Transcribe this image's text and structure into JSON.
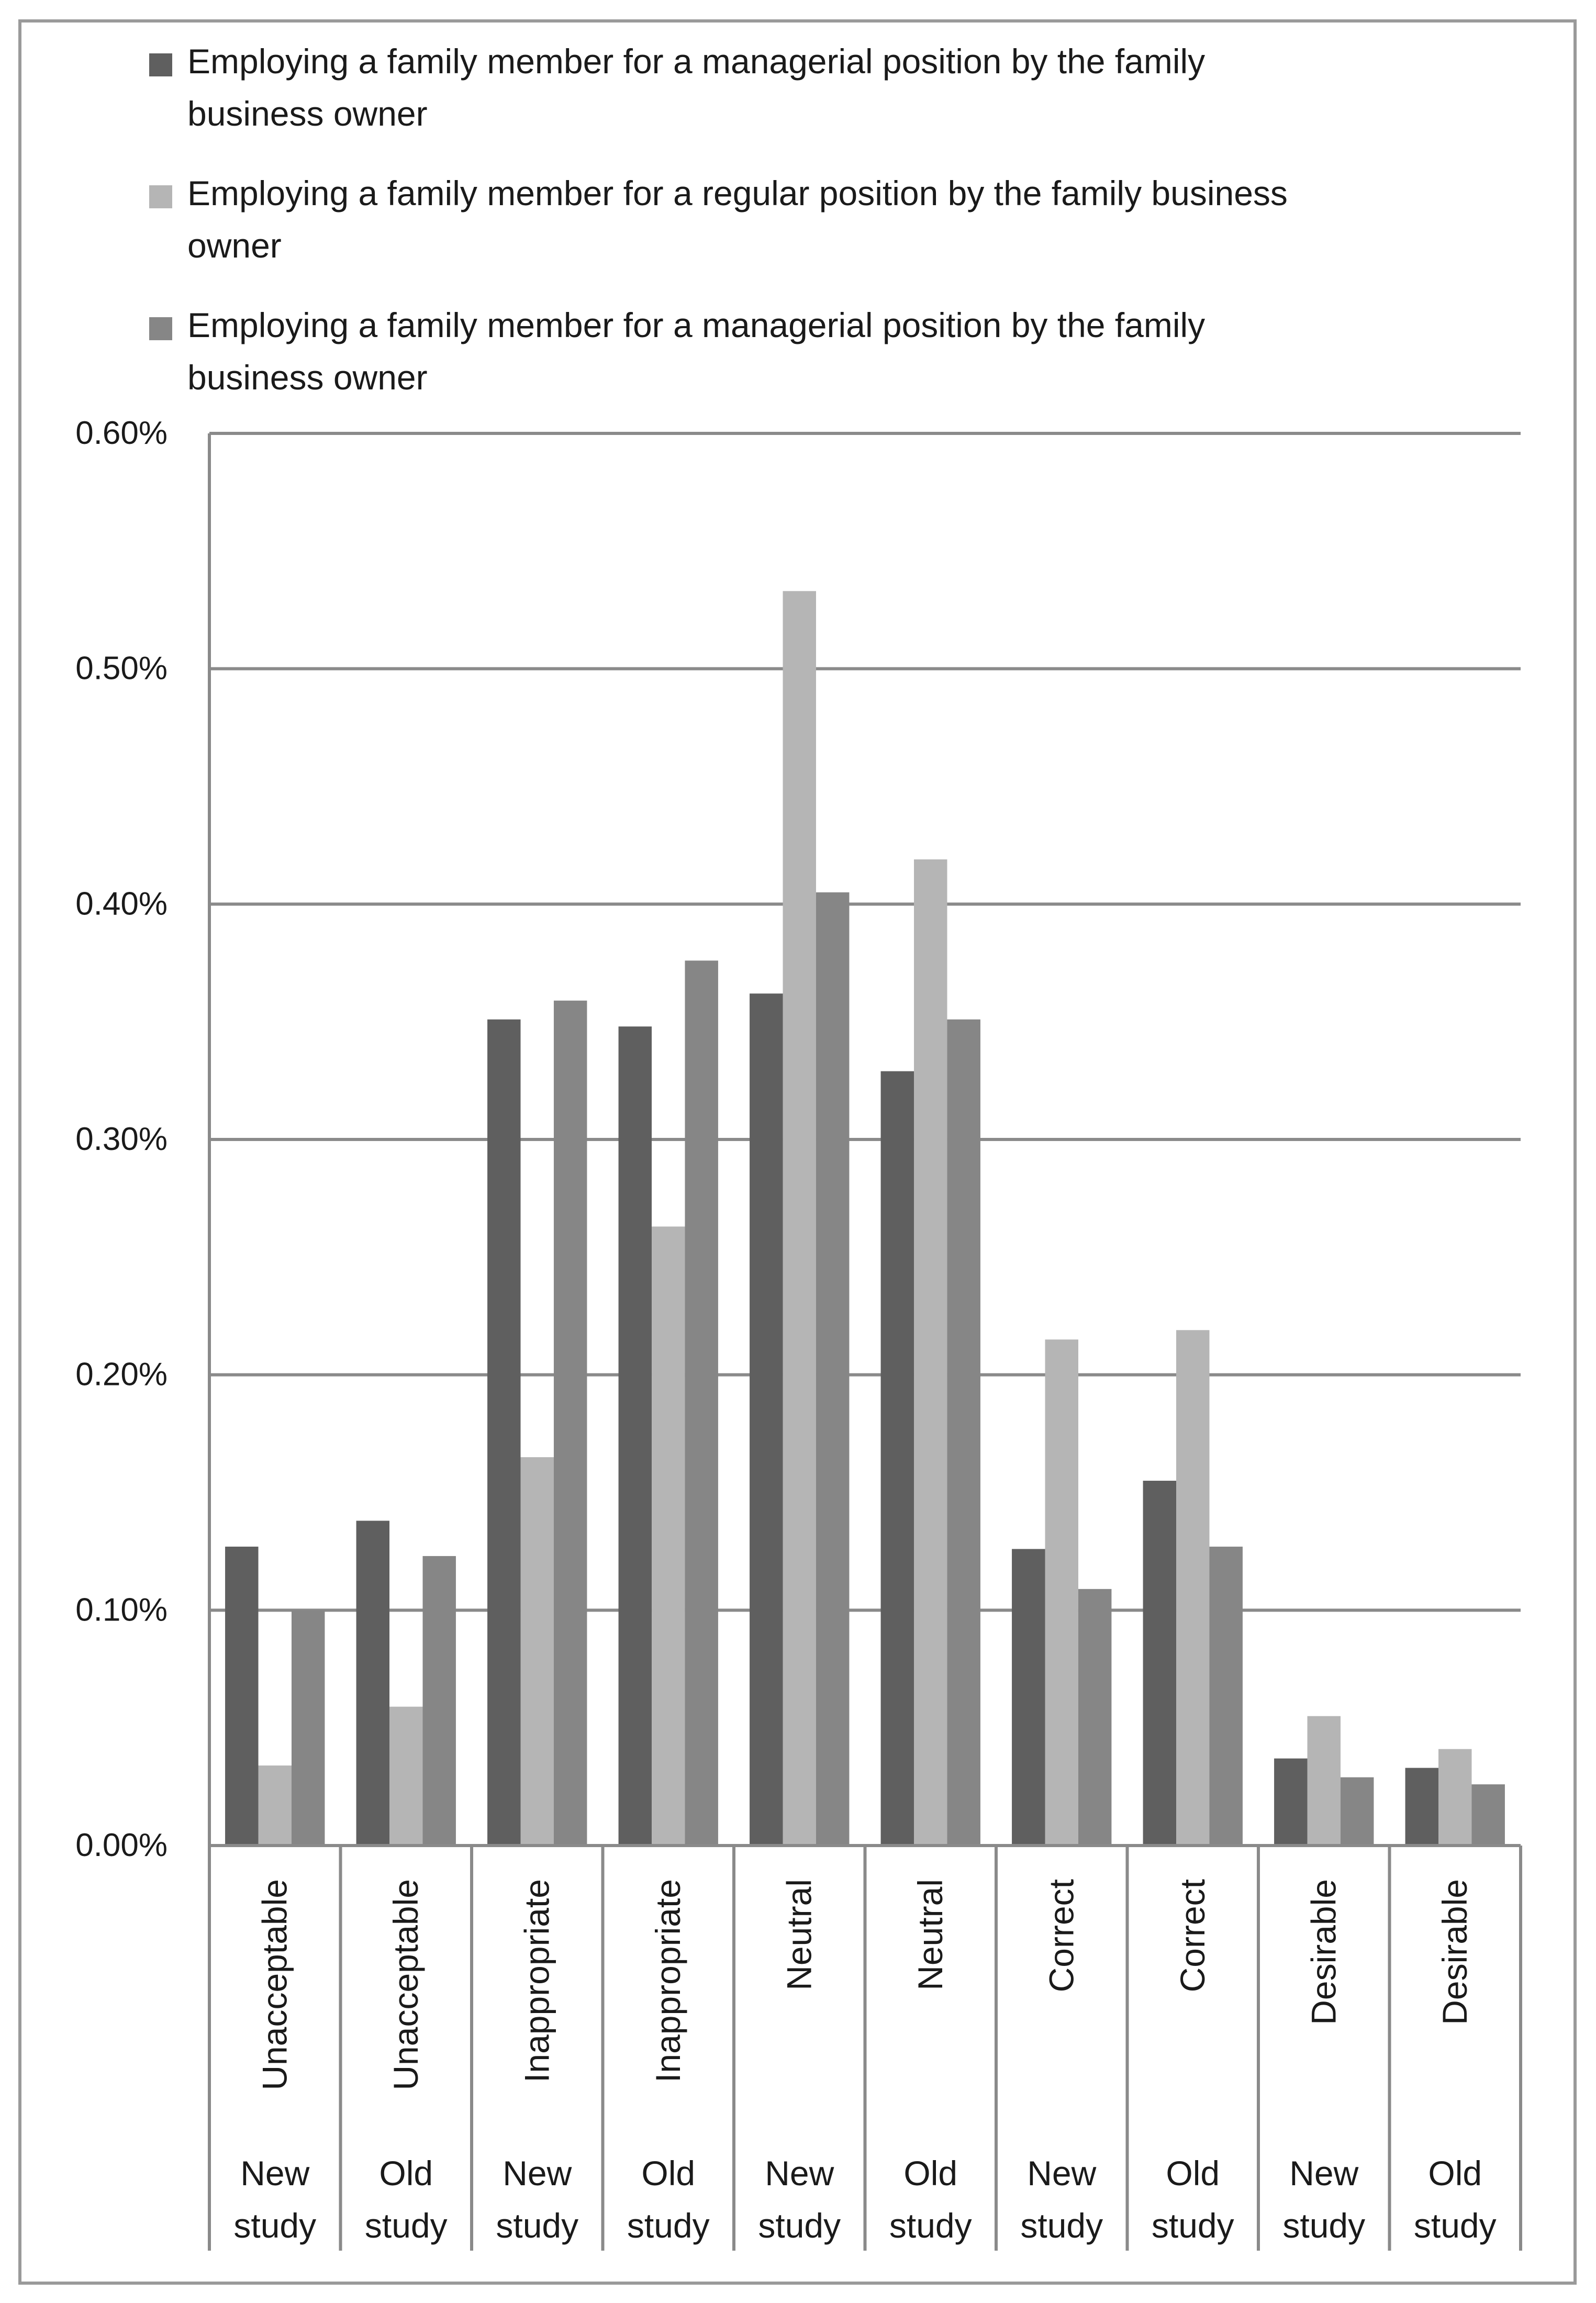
{
  "chart_data": {
    "type": "bar",
    "title": "",
    "xlabel": "",
    "ylabel": "",
    "ylim": [
      0,
      0.6
    ],
    "y_ticks": [
      "0.00%",
      "0.10%",
      "0.20%",
      "0.30%",
      "0.40%",
      "0.50%",
      "0.60%"
    ],
    "y_tick_values": [
      0,
      0.1,
      0.2,
      0.3,
      0.4,
      0.5,
      0.6
    ],
    "grid": true,
    "legend_position": "top",
    "categories": [
      {
        "label": "Unacceptable",
        "study": [
          "New",
          "study"
        ]
      },
      {
        "label": "Unacceptable",
        "study": [
          "Old",
          "study"
        ]
      },
      {
        "label": "Inappropriate",
        "study": [
          "New",
          "study"
        ]
      },
      {
        "label": "Inappropriate",
        "study": [
          "Old",
          "study"
        ]
      },
      {
        "label": "Neutral",
        "study": [
          "New",
          "study"
        ]
      },
      {
        "label": "Neutral",
        "study": [
          "Old",
          "study"
        ]
      },
      {
        "label": "Correct",
        "study": [
          "New",
          "study"
        ]
      },
      {
        "label": "Correct",
        "study": [
          "Old",
          "study"
        ]
      },
      {
        "label": "Desirable",
        "study": [
          "New",
          "study"
        ]
      },
      {
        "label": "Desirable",
        "study": [
          "Old",
          "study"
        ]
      }
    ],
    "series": [
      {
        "name": "Employing a family member for a managerial position by the family business owner",
        "legend_lines": [
          "Employing a family member for a managerial position by the family",
          "business owner"
        ],
        "color": "#5f5f5f",
        "values": [
          0.127,
          0.138,
          0.351,
          0.348,
          0.362,
          0.329,
          0.126,
          0.155,
          0.037,
          0.033
        ]
      },
      {
        "name": "Employing a family member for a regular position by the family business owner",
        "legend_lines": [
          "Employing a family member for a regular position by the family  business",
          "owner"
        ],
        "color": "#b5b5b5",
        "values": [
          0.034,
          0.059,
          0.165,
          0.263,
          0.533,
          0.419,
          0.215,
          0.219,
          0.055,
          0.041
        ]
      },
      {
        "name": "Employing a family member for a managerial position by the family business owner",
        "legend_lines": [
          "Employing a family member for a managerial position by the family",
          "business owner"
        ],
        "color": "#868686",
        "values": [
          0.1,
          0.123,
          0.359,
          0.376,
          0.405,
          0.351,
          0.109,
          0.127,
          0.029,
          0.026
        ]
      }
    ]
  }
}
